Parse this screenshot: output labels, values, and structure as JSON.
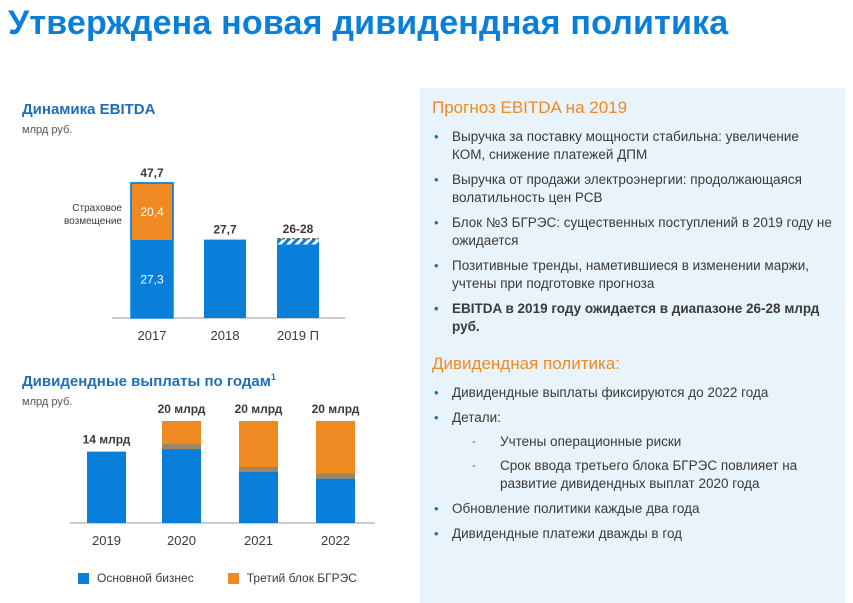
{
  "slide_title": "Утверждена новая дивидендная политика",
  "ebitda": {
    "title": "Динамика EBITDA",
    "unit": "млрд руб.",
    "side_label_line1": "Страховое",
    "side_label_line2": "возмещение"
  },
  "dividends": {
    "title": "Дивидендные выплаты по годам",
    "footnote": "1",
    "unit": "млрд руб."
  },
  "legend": {
    "core": "Основной бизнес",
    "third": "Третий блок БГРЭС"
  },
  "colors": {
    "blue": "#0a7fd9",
    "orange": "#ef8a22",
    "title": "#0a7fd9",
    "panel": "#e9f3fb"
  },
  "chart_data": [
    {
      "type": "bar",
      "title": "Динамика EBITDA",
      "ylabel": "млрд руб.",
      "categories": [
        "2017",
        "2018",
        "2019 П"
      ],
      "series": [
        {
          "values": [
            27.3,
            27.7,
            26
          ],
          "color": "#0a7fd9"
        },
        {
          "name": "Страховое возмещение",
          "values": [
            20.4,
            0,
            2
          ],
          "color": "#ef8a22"
        }
      ],
      "total_labels": [
        "47,7",
        "27,7",
        "26-28"
      ],
      "segment_labels": {
        "2017": [
          "27,3",
          "20,4"
        ]
      }
    },
    {
      "type": "bar",
      "title": "Дивидендные выплаты по годам",
      "ylabel": "млрд руб.",
      "categories": [
        "2019",
        "2020",
        "2021",
        "2022"
      ],
      "series": [
        {
          "name": "Основной бизнес",
          "values": [
            14,
            14.5,
            10,
            8.7
          ],
          "color": "#0a7fd9"
        },
        {
          "name": "Третий блок БГРЭС",
          "values": [
            0,
            5.5,
            10,
            11.3
          ],
          "color": "#ef8a22"
        }
      ],
      "total_labels": [
        "14 млрд",
        "20 млрд",
        "20 млрд",
        "20 млрд"
      ]
    }
  ],
  "forecast": {
    "heading": "Прогноз EBITDA на 2019",
    "items": [
      "Выручка за поставку мощности стабильна: увеличение КОМ, снижение платежей ДПМ",
      "Выручка от продажи электроэнергии: продолжающаяся волатильность цен РСВ",
      "Блок №3 БГРЭС: существенных поступлений в 2019 году не ожидается",
      "Позитивные тренды, наметившиеся в изменении маржи, учтены при подготовке прогноза",
      "EBITDA в 2019 году ожидается в диапазоне 26-28 млрд руб."
    ]
  },
  "policy": {
    "heading": "Дивидендная политика:",
    "item1": "Дивидендные выплаты фиксируются до 2022 года",
    "item2": "Детали:",
    "sub1": "Учтены операционные риски",
    "sub2": "Срок ввода третьего блока БГРЭС повлияет на развитие дивидендных выплат 2020 года",
    "item3": "Обновление политики каждые два года",
    "item4": "Дивидендные платежи дважды в год"
  }
}
